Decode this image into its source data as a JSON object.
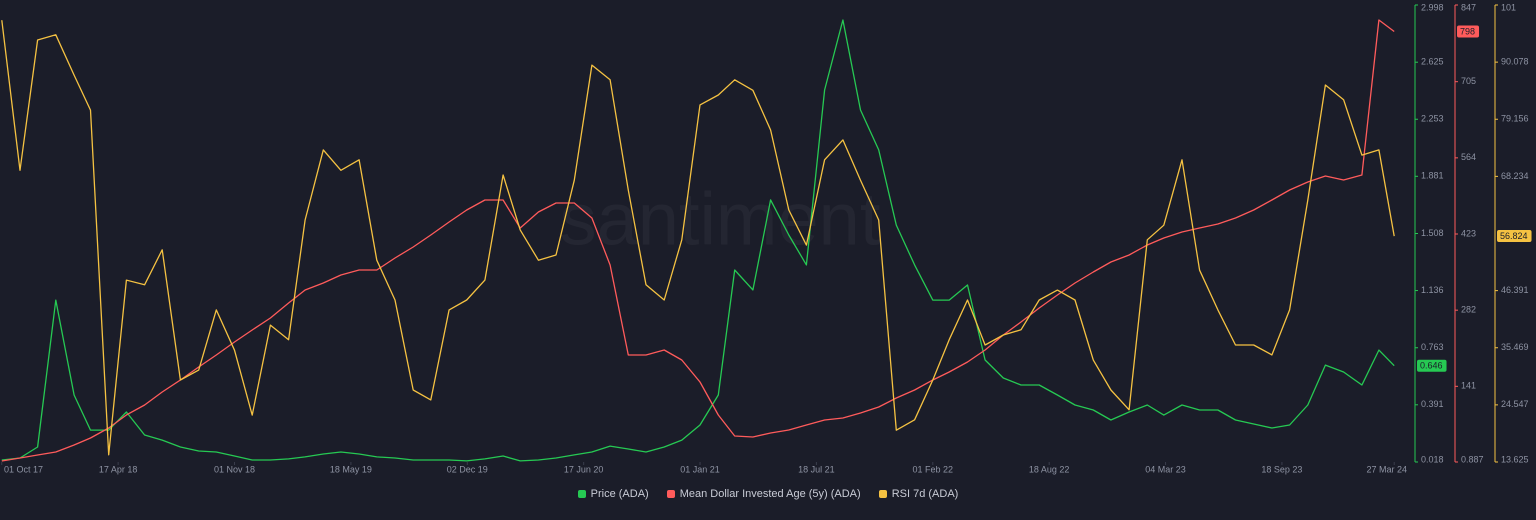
{
  "chart_data": {
    "type": "line",
    "watermark": "santiment",
    "x": [
      "2017-10-01",
      "2017-11-01",
      "2017-12-01",
      "2018-01-01",
      "2018-02-01",
      "2018-03-01",
      "2018-04-01",
      "2018-05-01",
      "2018-06-01",
      "2018-07-01",
      "2018-08-01",
      "2018-09-01",
      "2018-10-01",
      "2018-11-01",
      "2018-12-01",
      "2019-01-01",
      "2019-02-01",
      "2019-03-01",
      "2019-04-01",
      "2019-05-01",
      "2019-06-01",
      "2019-07-01",
      "2019-08-01",
      "2019-09-01",
      "2019-10-01",
      "2019-11-01",
      "2019-12-01",
      "2020-01-01",
      "2020-02-01",
      "2020-03-01",
      "2020-04-01",
      "2020-05-01",
      "2020-06-01",
      "2020-07-01",
      "2020-08-01",
      "2020-09-01",
      "2020-10-01",
      "2020-11-01",
      "2020-12-01",
      "2021-01-01",
      "2021-02-01",
      "2021-03-01",
      "2021-04-01",
      "2021-05-01",
      "2021-06-01",
      "2021-07-01",
      "2021-08-01",
      "2021-09-01",
      "2021-10-01",
      "2021-11-01",
      "2021-12-01",
      "2022-01-01",
      "2022-02-01",
      "2022-03-01",
      "2022-04-01",
      "2022-05-01",
      "2022-06-01",
      "2022-07-01",
      "2022-08-01",
      "2022-09-01",
      "2022-10-01",
      "2022-11-01",
      "2022-12-01",
      "2023-01-01",
      "2023-02-01",
      "2023-03-01",
      "2023-04-01",
      "2023-05-01",
      "2023-06-01",
      "2023-07-01",
      "2023-08-01",
      "2023-09-01",
      "2023-10-01",
      "2023-11-01",
      "2023-12-01",
      "2024-01-01",
      "2024-02-01",
      "2024-03-01",
      "2024-03-27"
    ],
    "xlim": [
      "2017-09-28",
      "2024-04-28"
    ],
    "xticks": [
      {
        "value": "2017-10-01",
        "label": "01 Oct 17"
      },
      {
        "value": "2018-04-17",
        "label": "17 Apr 18"
      },
      {
        "value": "2018-11-01",
        "label": "01 Nov 18"
      },
      {
        "value": "2019-05-18",
        "label": "18 May 19"
      },
      {
        "value": "2019-12-02",
        "label": "02 Dec 19"
      },
      {
        "value": "2020-06-17",
        "label": "17 Jun 20"
      },
      {
        "value": "2021-01-01",
        "label": "01 Jan 21"
      },
      {
        "value": "2021-07-18",
        "label": "18 Jul 21"
      },
      {
        "value": "2022-02-01",
        "label": "01 Feb 22"
      },
      {
        "value": "2022-08-18",
        "label": "18 Aug 22"
      },
      {
        "value": "2023-03-04",
        "label": "04 Mar 23"
      },
      {
        "value": "2023-09-18",
        "label": "18 Sep 23"
      },
      {
        "value": "2024-03-27",
        "label": "27 Mar 24"
      }
    ],
    "ylim": [
      0.018,
      2.998
    ],
    "yticks": [
      0.018,
      0.391,
      0.763,
      1.136,
      1.508,
      1.881,
      2.253,
      2.625,
      2.998
    ],
    "y2lim": [
      0.887,
      847
    ],
    "y2ticks": [
      0.887,
      141,
      282,
      423,
      564,
      705,
      847
    ],
    "y3lim": [
      13.625,
      101
    ],
    "y3ticks": [
      13.625,
      24.547,
      35.469,
      46.391,
      68.234,
      79.156,
      90.078,
      101
    ],
    "series": [
      {
        "name": "Price (ADA)",
        "color": "#26c953",
        "axis": "y",
        "values": [
          0.031,
          0.044,
          0.116,
          1.074,
          0.455,
          0.226,
          0.226,
          0.344,
          0.194,
          0.161,
          0.116,
          0.09,
          0.083,
          0.057,
          0.031,
          0.031,
          0.038,
          0.051,
          0.07,
          0.083,
          0.07,
          0.051,
          0.044,
          0.031,
          0.031,
          0.031,
          0.025,
          0.038,
          0.057,
          0.025,
          0.031,
          0.044,
          0.064,
          0.083,
          0.122,
          0.103,
          0.083,
          0.116,
          0.161,
          0.259,
          0.455,
          1.27,
          1.14,
          1.727,
          1.498,
          1.303,
          2.444,
          2.9,
          2.313,
          2.053,
          1.563,
          1.303,
          1.074,
          1.074,
          1.172,
          0.683,
          0.566,
          0.52,
          0.52,
          0.455,
          0.39,
          0.357,
          0.292,
          0.344,
          0.39,
          0.324,
          0.39,
          0.357,
          0.357,
          0.292,
          0.266,
          0.24,
          0.259,
          0.39,
          0.65,
          0.605,
          0.52,
          0.748,
          0.646
        ]
      },
      {
        "name": "Mean Dollar Invested Age (5y) (ADA)",
        "color": "#ff5b5b",
        "axis": "y2",
        "values": [
          2.7,
          8.3,
          13.8,
          19.4,
          32.4,
          45.3,
          63.8,
          87.9,
          106.4,
          130.5,
          152.7,
          176.8,
          199.0,
          223.1,
          245.3,
          267.5,
          295.3,
          319.3,
          332.3,
          347.1,
          356.4,
          356.4,
          378.6,
          398.9,
          421.2,
          445.2,
          467.5,
          486.0,
          486.0,
          434.1,
          463.8,
          480.4,
          480.4,
          452.7,
          365.6,
          199.0,
          199.0,
          208.3,
          189.7,
          149.0,
          87.9,
          49.0,
          47.2,
          54.6,
          60.1,
          69.4,
          78.6,
          82.4,
          91.6,
          102.7,
          119.4,
          134.2,
          152.7,
          167.5,
          186.0,
          208.3,
          236.0,
          260.1,
          286.0,
          310.1,
          332.3,
          352.7,
          371.2,
          384.1,
          402.7,
          415.6,
          426.7,
          434.1,
          441.5,
          452.7,
          467.5,
          486.0,
          504.5,
          519.3,
          530.4,
          523.0,
          532.3,
          819.3,
          798
        ]
      },
      {
        "name": "RSI 7d (ADA)",
        "color": "#f5c242",
        "axis": "y3",
        "values": [
          98.1,
          69.4,
          94.3,
          95.3,
          87.6,
          80.9,
          15.0,
          48.4,
          47.5,
          54.2,
          29.3,
          31.2,
          42.7,
          35.0,
          22.6,
          39.8,
          37.0,
          59.9,
          73.3,
          69.4,
          71.4,
          52.2,
          44.6,
          27.4,
          25.5,
          42.7,
          44.6,
          48.4,
          68.5,
          58.0,
          52.2,
          53.2,
          67.5,
          89.5,
          86.7,
          65.6,
          47.5,
          44.6,
          56.1,
          81.9,
          83.8,
          86.7,
          84.7,
          77.1,
          61.8,
          55.1,
          71.4,
          75.2,
          67.5,
          59.9,
          19.7,
          21.7,
          29.3,
          37.0,
          44.6,
          36.0,
          37.9,
          38.9,
          44.6,
          46.5,
          44.6,
          33.1,
          27.4,
          23.6,
          56.1,
          58.9,
          71.4,
          50.3,
          42.7,
          36.0,
          36.0,
          34.1,
          42.7,
          63.7,
          85.7,
          82.9,
          72.3,
          73.3,
          56.824
        ]
      }
    ]
  }
}
